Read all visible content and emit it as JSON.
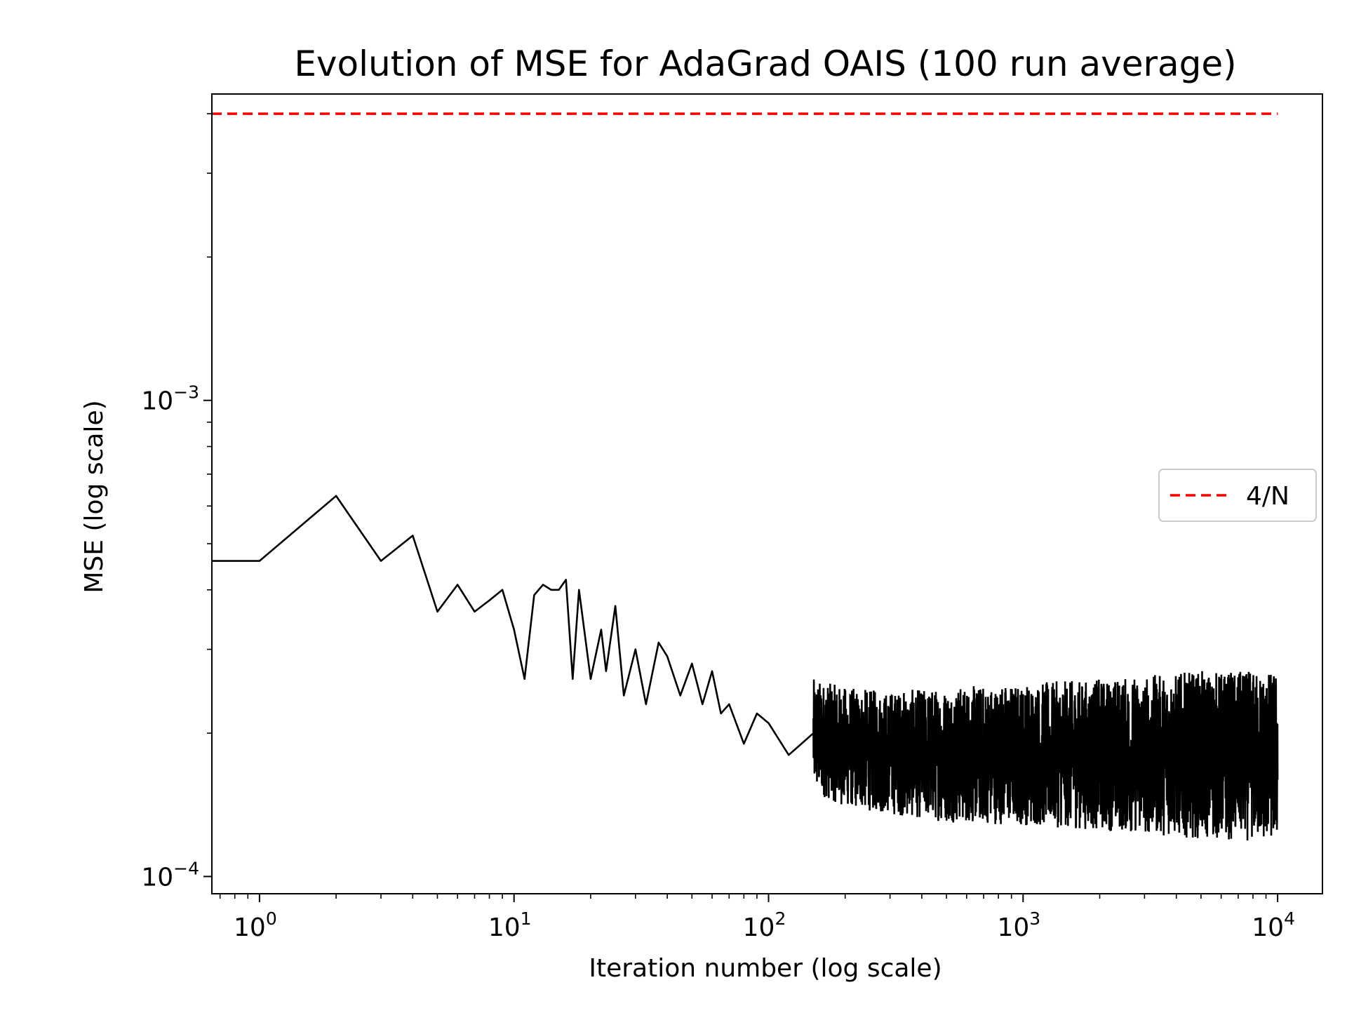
{
  "chart_data": {
    "type": "line",
    "title": "Evolution of MSE for AdaGrad OAIS (100 run average)",
    "xlabel": "Iteration number (log scale)",
    "ylabel": "MSE (log scale)",
    "xscale": "log",
    "yscale": "log",
    "xlim": [
      0.65,
      15000
    ],
    "ylim": [
      9.2e-05,
      0.0044
    ],
    "grid": false,
    "legend_position": "center-right",
    "x_ticks": [
      {
        "base": "10",
        "exp": "0",
        "value": 1
      },
      {
        "base": "10",
        "exp": "1",
        "value": 10
      },
      {
        "base": "10",
        "exp": "2",
        "value": 100
      },
      {
        "base": "10",
        "exp": "3",
        "value": 1000
      },
      {
        "base": "10",
        "exp": "4",
        "value": 10000
      }
    ],
    "y_ticks": [
      {
        "base": "10",
        "exp": "−4",
        "value": 0.0001
      },
      {
        "base": "10",
        "exp": "−3",
        "value": 0.001
      }
    ],
    "series": [
      {
        "name": "",
        "style": "solid",
        "color": "#000000",
        "x": [
          0.65,
          1,
          2,
          3,
          4,
          5,
          6,
          7,
          8,
          9,
          10,
          11,
          12,
          13,
          14,
          15,
          16,
          17,
          18,
          20,
          22,
          23,
          25,
          27,
          30,
          33,
          37,
          40,
          45,
          50,
          55,
          60,
          65,
          70,
          80,
          90,
          100,
          120,
          150,
          200,
          250,
          300,
          400,
          500,
          600,
          800,
          1000,
          1500,
          2000,
          3000,
          4000,
          5000,
          6000,
          8000,
          10000
        ],
        "y": [
          0.00046,
          0.00046,
          0.00063,
          0.00046,
          0.00052,
          0.00036,
          0.00041,
          0.00036,
          0.00038,
          0.0004,
          0.00033,
          0.00026,
          0.00039,
          0.00041,
          0.0004,
          0.0004,
          0.00042,
          0.00026,
          0.0004,
          0.00026,
          0.00033,
          0.00027,
          0.00037,
          0.00024,
          0.0003,
          0.00023,
          0.00031,
          0.00029,
          0.00024,
          0.00028,
          0.00023,
          0.00027,
          0.00022,
          0.00023,
          0.00019,
          0.00022,
          0.00021,
          0.00018,
          0.0002,
          0.00017,
          0.00019,
          0.00018,
          0.00019,
          0.00018,
          0.00019,
          0.00018,
          0.00019,
          0.00019,
          0.00018,
          0.00019,
          0.00018,
          0.00019,
          0.00018,
          0.00019,
          0.00019
        ],
        "band_x": [
          150,
          200,
          300,
          500,
          1000,
          2000,
          5000,
          10000
        ],
        "band_lower": [
          0.00015,
          0.00014,
          0.000135,
          0.00013,
          0.000128,
          0.000125,
          0.00012,
          0.000118
        ],
        "band_upper": [
          0.00026,
          0.00025,
          0.000245,
          0.00025,
          0.000255,
          0.00026,
          0.00027,
          0.00027
        ]
      },
      {
        "name": "4/N",
        "style": "dashed",
        "color": "#ff0000",
        "x": [
          0.65,
          10000
        ],
        "y": [
          0.004,
          0.004
        ]
      }
    ]
  }
}
